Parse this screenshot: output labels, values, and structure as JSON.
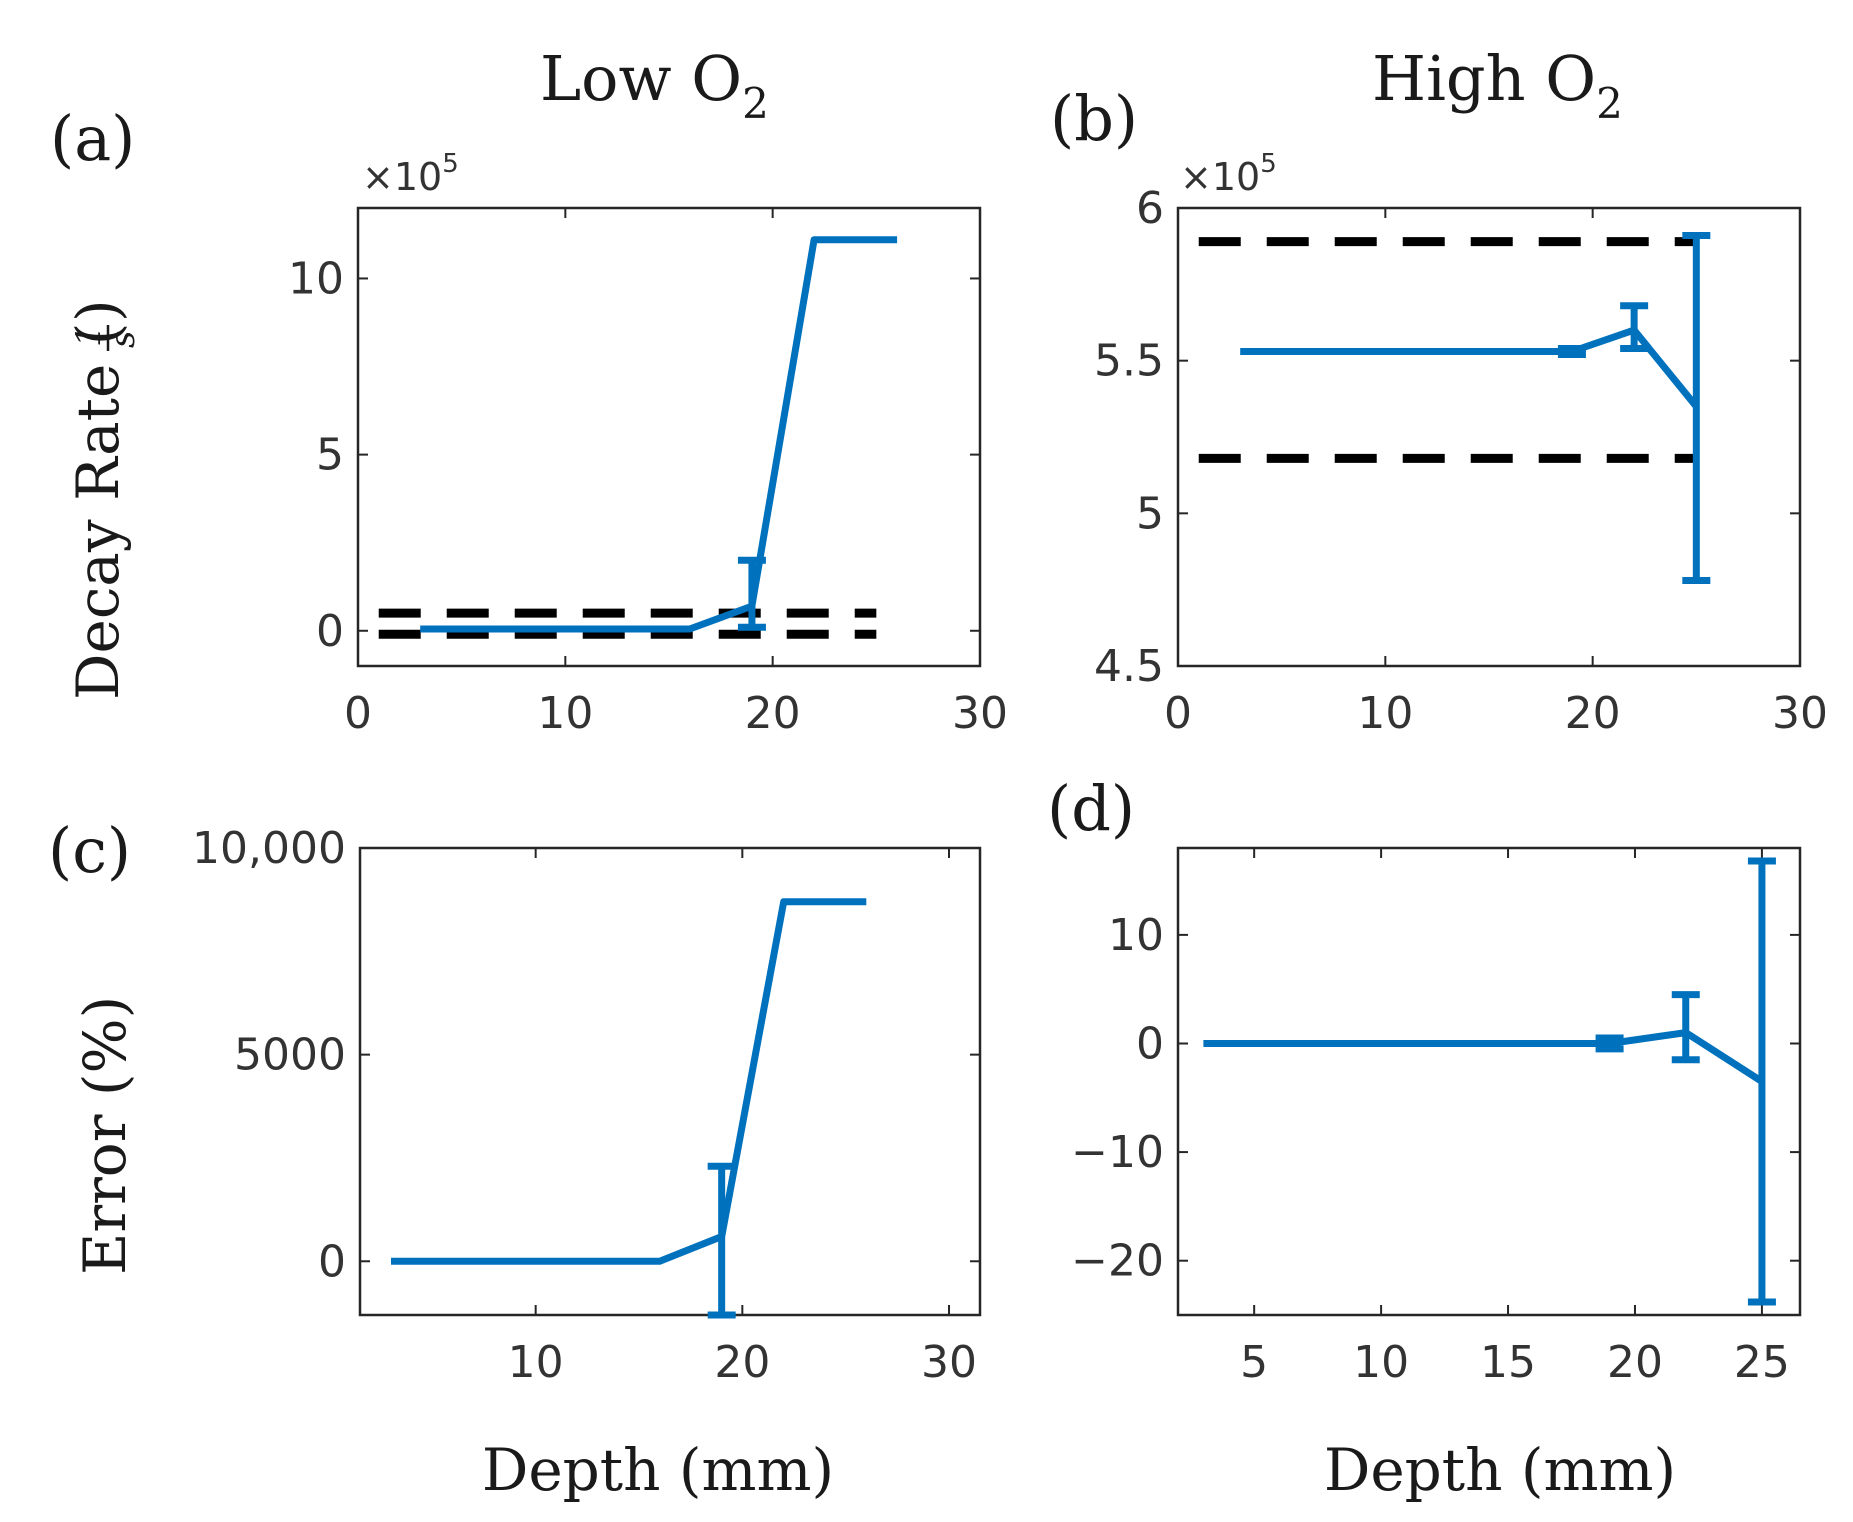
{
  "figure": {
    "column_titles": {
      "left": "Low O",
      "right": "High O",
      "subscript": "2"
    },
    "ylabel_top": "Decay Rate (1/s)",
    "ylabel_top_text": "Decay Rate (",
    "ylabel_top_fraction": {
      "num": "1",
      "den": "s"
    },
    "ylabel_top_close": ")",
    "ylabel_bottom": "Error (%)",
    "xlabel_bottom": "Depth (mm)"
  },
  "chart_data": [
    {
      "id": "a",
      "panel_label": "(a)",
      "type": "line",
      "exponent_label": "×10",
      "exponent_power": "5",
      "xlim": [
        0,
        30
      ],
      "ylim": [
        -1,
        12
      ],
      "xticks": [
        0,
        10,
        20,
        30
      ],
      "xtick_labels": [
        "0",
        "10",
        "20",
        "30"
      ],
      "yticks": [
        0,
        5,
        10
      ],
      "ytick_labels": [
        "0",
        "5",
        "10"
      ],
      "color": "#0072BD",
      "series": [
        {
          "x": [
            3,
            6,
            9,
            12,
            16,
            19,
            22,
            26
          ],
          "y": [
            0.05,
            0.05,
            0.05,
            0.05,
            0.05,
            0.7,
            11.1,
            11.1
          ],
          "err_low": [
            0,
            0,
            0,
            0,
            0,
            0.6,
            0,
            0
          ],
          "err_high": [
            0,
            0,
            0,
            0,
            0,
            1.3,
            0,
            0
          ]
        }
      ],
      "reference_lines": [
        {
          "y": 0.5,
          "x_range": [
            1,
            25
          ],
          "style": "dashed",
          "color": "#000000"
        },
        {
          "y": -0.1,
          "x_range": [
            1,
            25
          ],
          "style": "dashed",
          "color": "#000000"
        }
      ]
    },
    {
      "id": "b",
      "panel_label": "(b)",
      "type": "line",
      "exponent_label": "×10",
      "exponent_power": "5",
      "xlim": [
        0,
        30
      ],
      "ylim": [
        4.5,
        6
      ],
      "xticks": [
        0,
        10,
        20,
        30
      ],
      "xtick_labels": [
        "0",
        "10",
        "20",
        "30"
      ],
      "yticks": [
        4.5,
        5,
        5.5,
        6
      ],
      "ytick_labels": [
        "4.5",
        "5",
        "5.5",
        "6"
      ],
      "color": "#0072BD",
      "series": [
        {
          "x": [
            3,
            6,
            9,
            12,
            16,
            19,
            22,
            25
          ],
          "y": [
            5.53,
            5.53,
            5.53,
            5.53,
            5.53,
            5.53,
            5.6,
            5.35
          ],
          "err_low": [
            0,
            0,
            0,
            0,
            0,
            0.01,
            0.06,
            0.57
          ],
          "err_high": [
            0,
            0,
            0,
            0,
            0,
            0.01,
            0.08,
            0.56
          ]
        }
      ],
      "reference_lines": [
        {
          "y": 5.89,
          "x_range": [
            1,
            25
          ],
          "style": "dashed",
          "color": "#000000"
        },
        {
          "y": 5.18,
          "x_range": [
            1,
            25
          ],
          "style": "dashed",
          "color": "#000000"
        }
      ]
    },
    {
      "id": "c",
      "panel_label": "(c)",
      "type": "line",
      "xlim": [
        1.5,
        31.5
      ],
      "ylim": [
        -1300,
        10000
      ],
      "xticks": [
        10,
        20,
        30
      ],
      "xtick_labels": [
        "10",
        "20",
        "30"
      ],
      "yticks": [
        0,
        5000,
        10000
      ],
      "ytick_labels": [
        "0",
        "5000",
        "10,000"
      ],
      "color": "#0072BD",
      "series": [
        {
          "x": [
            3,
            6,
            9,
            12,
            16,
            19,
            22,
            26
          ],
          "y": [
            0,
            0,
            0,
            0,
            0,
            600,
            8700,
            8700
          ],
          "err_low": [
            0,
            0,
            0,
            0,
            0,
            1900,
            0,
            0
          ],
          "err_high": [
            0,
            0,
            0,
            0,
            0,
            1700,
            0,
            0
          ]
        }
      ],
      "reference_lines": []
    },
    {
      "id": "d",
      "panel_label": "(d)",
      "type": "line",
      "xlim": [
        2,
        26.5
      ],
      "ylim": [
        -25,
        18
      ],
      "xticks": [
        5,
        10,
        15,
        20,
        25
      ],
      "xtick_labels": [
        "5",
        "10",
        "15",
        "20",
        "25"
      ],
      "yticks": [
        -20,
        -10,
        0,
        10
      ],
      "ytick_labels": [
        "−20",
        "−10",
        "0",
        "10"
      ],
      "color": "#0072BD",
      "series": [
        {
          "x": [
            3,
            6,
            9,
            12,
            16,
            19,
            22,
            25
          ],
          "y": [
            0,
            0,
            0,
            0,
            0,
            0,
            1,
            -3.5
          ],
          "err_low": [
            0,
            0,
            0,
            0,
            0,
            0.5,
            2.5,
            20.3
          ],
          "err_high": [
            0,
            0,
            0,
            0,
            0,
            0.5,
            3.5,
            20.3
          ]
        }
      ],
      "reference_lines": []
    }
  ]
}
